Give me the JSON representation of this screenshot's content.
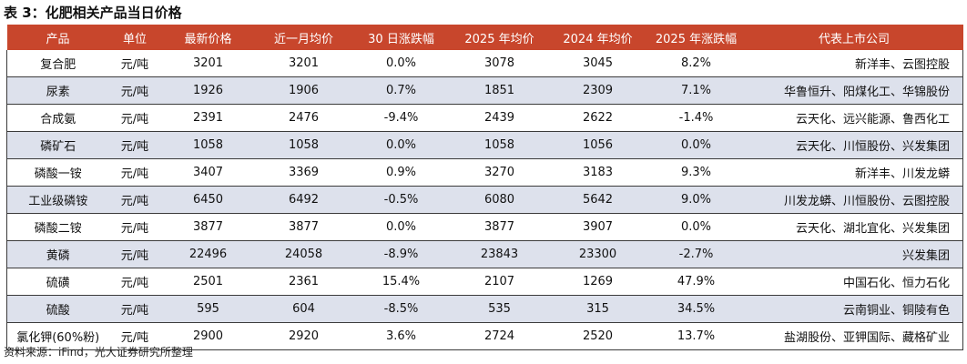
{
  "title": "表 3：化肥相关产品当日价格",
  "headers": [
    "产品",
    "单位",
    "最新价格",
    "近一月均价",
    "30 日涨跌幅",
    "2025 年均价",
    "2024 年均价",
    "2025 年涨跌幅",
    "代表上市公司"
  ],
  "rows": [
    [
      "复合肥",
      "元/吨",
      "3201",
      "3201",
      "0.0%",
      "3078",
      "3045",
      "8.2%",
      "新洋丰、云图控股"
    ],
    [
      "尿素",
      "元/吨",
      "1926",
      "1906",
      "0.7%",
      "1851",
      "2309",
      "7.1%",
      "华鲁恒升、阳煤化工、华锦股份"
    ],
    [
      "合成氨",
      "元/吨",
      "2391",
      "2476",
      "-9.4%",
      "2439",
      "2622",
      "-1.4%",
      "云天化、远兴能源、鲁西化工"
    ],
    [
      "磷矿石",
      "元/吨",
      "1058",
      "1058",
      "0.0%",
      "1058",
      "1056",
      "0.0%",
      "云天化、川恒股份、兴发集团"
    ],
    [
      "磷酸一铵",
      "元/吨",
      "3407",
      "3369",
      "0.9%",
      "3270",
      "3183",
      "9.3%",
      "新洋丰、川发龙蟒"
    ],
    [
      "工业级磷铵",
      "元/吨",
      "6450",
      "6492",
      "-0.5%",
      "6080",
      "5642",
      "9.0%",
      "川发龙蟒、川恒股份、云图控股"
    ],
    [
      "磷酸二铵",
      "元/吨",
      "3877",
      "3877",
      "0.0%",
      "3877",
      "3907",
      "0.0%",
      "云天化、湖北宜化、兴发集团"
    ],
    [
      "黄磷",
      "元/吨",
      "22496",
      "24058",
      "-8.9%",
      "23843",
      "23300",
      "-2.7%",
      "兴发集团"
    ],
    [
      "硫磺",
      "元/吨",
      "2501",
      "2361",
      "15.4%",
      "2107",
      "1269",
      "47.9%",
      "中国石化、恒力石化"
    ],
    [
      "硫酸",
      "元/吨",
      "595",
      "604",
      "-8.5%",
      "535",
      "315",
      "34.5%",
      "云南铜业、铜陵有色"
    ],
    [
      "氯化钾(60%粉)",
      "元/吨",
      "2900",
      "2920",
      "3.6%",
      "2724",
      "2520",
      "13.7%",
      "盐湖股份、亚钾国际、藏格矿业"
    ]
  ],
  "source": "资料来源：iFind，光大证券研究所整理",
  "colors": {
    "header_bg": "#c8462c",
    "header_text": "#ffffff",
    "row_shade": "#dde1ec",
    "border": "#3b3b3b"
  }
}
